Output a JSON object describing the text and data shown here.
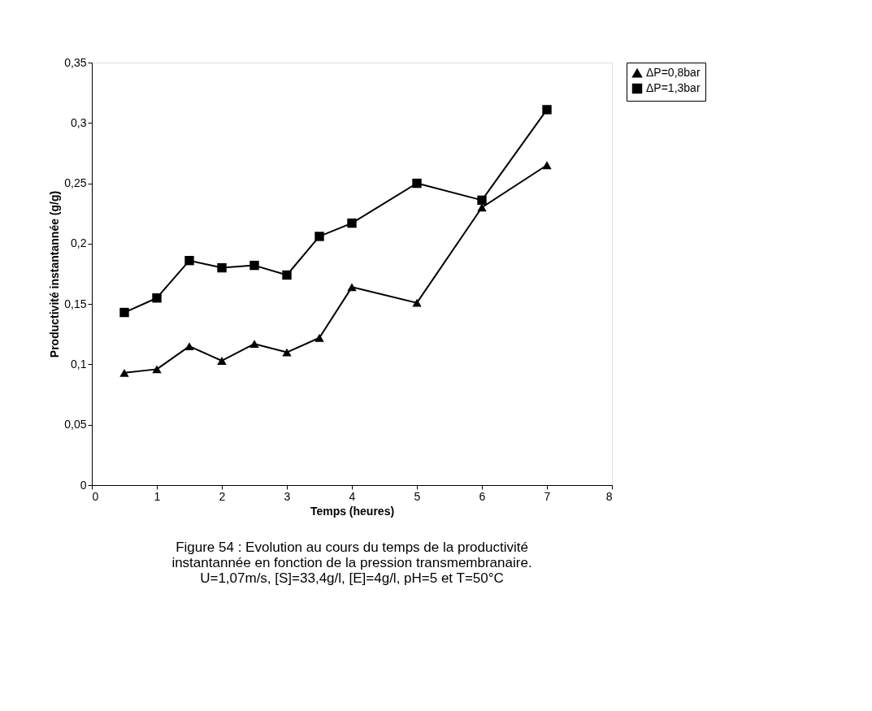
{
  "chart_data": {
    "type": "line",
    "xlabel": "Temps (heures)",
    "ylabel": "Productivité instantannée (g/g)",
    "xlim": [
      0,
      8
    ],
    "xticks": [
      0,
      1,
      2,
      3,
      4,
      5,
      6,
      7,
      8
    ],
    "ylim": [
      0,
      0.35
    ],
    "yticks": [
      0,
      {
        "value": 0.05,
        "label": "0,05"
      },
      {
        "value": 0.1,
        "label": "0,1"
      },
      {
        "value": 0.15,
        "label": "0,15"
      },
      {
        "value": 0.2,
        "label": "0,2"
      },
      {
        "value": 0.25,
        "label": "0,25"
      },
      {
        "value": 0.3,
        "label": "0,3"
      },
      {
        "value": 0.35,
        "label": "0,35"
      }
    ],
    "legend": "right",
    "grid": false,
    "line_style": "solid",
    "series": [
      {
        "name": "ΔP=0,8bar",
        "color": "#000000",
        "marker": "triangle",
        "x": [
          0.5,
          1,
          1.5,
          2,
          2.5,
          3,
          3.5,
          4,
          5,
          6,
          7
        ],
        "values": [
          0.093,
          0.096,
          0.115,
          0.103,
          0.117,
          0.11,
          0.122,
          0.164,
          0.151,
          0.23,
          0.265
        ]
      },
      {
        "name": "ΔP=1,3bar",
        "color": "#000000",
        "marker": "square",
        "x": [
          0.5,
          1,
          1.5,
          2,
          2.5,
          3,
          3.5,
          4,
          5,
          6,
          7
        ],
        "values": [
          0.143,
          0.155,
          0.186,
          0.18,
          0.182,
          0.174,
          0.206,
          0.217,
          0.25,
          0.236,
          0.311
        ]
      }
    ],
    "annotations": [
      "Figure 54 : Evolution au cours du temps de la productivité instantannée en fonction de la pression transmembranaire. U=1,07m/s, [S]=33,4g/l, [E]=4g/l, pH=5 et T=50°C"
    ]
  }
}
